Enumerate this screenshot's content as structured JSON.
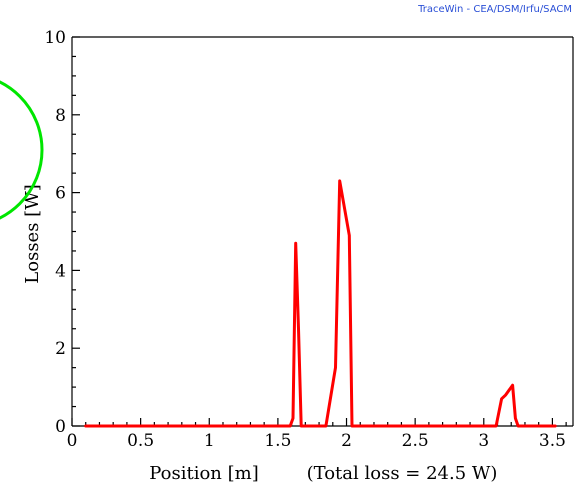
{
  "watermark": "TraceWin - CEA/DSM/Irfu/SACM",
  "colors": {
    "series": "#ff0000",
    "watermark": "#2a4fd6",
    "overlay": "#00e600",
    "axis": "#000000",
    "background": "#ffffff"
  },
  "chart_data": {
    "type": "line",
    "title": "",
    "xlabel": "Position [m]",
    "xlabel_note": "(Total loss = 24.5 W)",
    "ylabel": "Losses [W]",
    "xlim": [
      0,
      3.65
    ],
    "ylim": [
      0,
      10
    ],
    "x_ticks": [
      0,
      0.5,
      1,
      1.5,
      2,
      2.5,
      3,
      3.5
    ],
    "x_tick_labels": [
      "0",
      "0.5",
      "1",
      "1.5",
      "2",
      "2.5",
      "3",
      "3.5"
    ],
    "y_ticks": [
      0,
      2,
      4,
      6,
      8,
      10
    ],
    "y_tick_labels": [
      "0",
      "2",
      "4",
      "6",
      "8",
      "10"
    ],
    "grid": false,
    "series": [
      {
        "x": [
          0.1,
          1.59,
          1.61,
          1.63,
          1.65,
          1.67,
          1.85,
          1.92,
          1.95,
          2.02,
          2.04,
          2.06,
          3.09,
          3.13,
          3.16,
          3.21,
          3.23,
          3.25,
          3.52
        ],
        "y": [
          0,
          0,
          0.2,
          4.7,
          2.5,
          0,
          0,
          1.5,
          6.3,
          4.9,
          0,
          0,
          0,
          0.7,
          0.8,
          1.05,
          0.2,
          0,
          0
        ]
      }
    ]
  }
}
